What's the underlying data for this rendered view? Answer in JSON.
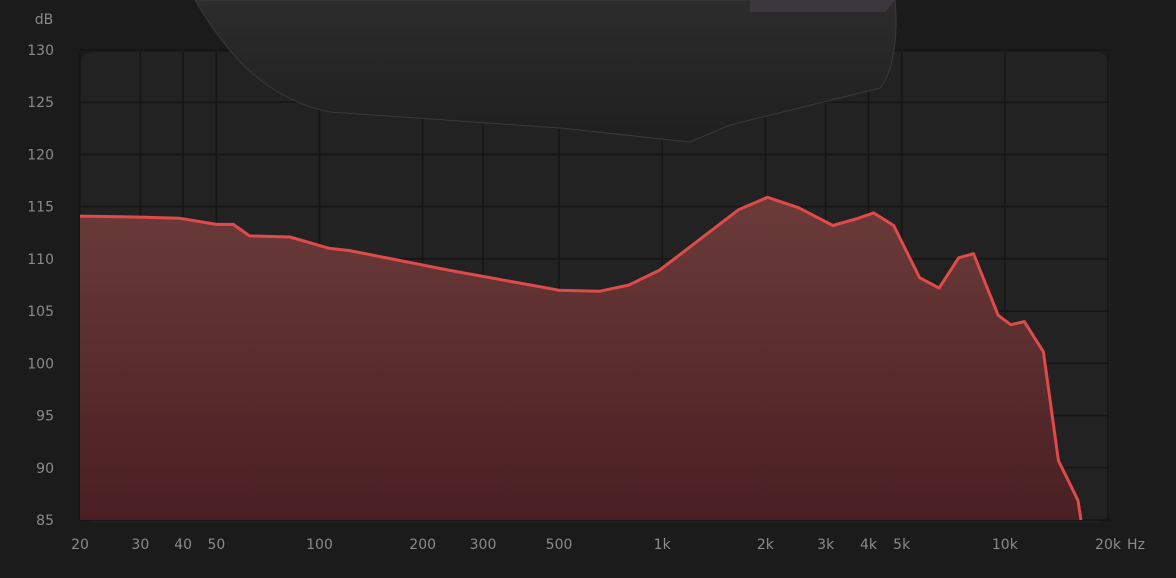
{
  "chart_data": {
    "type": "area",
    "title": "",
    "xlabel": "Hz",
    "ylabel": "dB",
    "x_scale": "log",
    "xlim": [
      20,
      20000
    ],
    "ylim": [
      85,
      130
    ],
    "grid": true,
    "x_ticks": [
      {
        "value": 20,
        "label": "20"
      },
      {
        "value": 30,
        "label": "30"
      },
      {
        "value": 40,
        "label": "40"
      },
      {
        "value": 50,
        "label": "50"
      },
      {
        "value": 100,
        "label": "100"
      },
      {
        "value": 200,
        "label": "200"
      },
      {
        "value": 300,
        "label": "300"
      },
      {
        "value": 500,
        "label": "500"
      },
      {
        "value": 1000,
        "label": "1k"
      },
      {
        "value": 2000,
        "label": "2k"
      },
      {
        "value": 3000,
        "label": "3k"
      },
      {
        "value": 4000,
        "label": "4k"
      },
      {
        "value": 5000,
        "label": "5k"
      },
      {
        "value": 10000,
        "label": "10k"
      },
      {
        "value": 20000,
        "label": "20k"
      }
    ],
    "y_ticks": [
      130,
      125,
      120,
      115,
      110,
      105,
      100,
      95,
      90,
      85
    ],
    "colors": {
      "line": "#e04a4a",
      "fill_top": "#6a3b39",
      "fill_bottom": "#4a1f23",
      "plot_bg": "#222222",
      "background": "#1b1b1b"
    },
    "series": [
      {
        "x": [
          20,
          30,
          39,
          50,
          56,
          62.5,
          82,
          107,
          122,
          240,
          500,
          656,
          800,
          980,
          1280,
          1670,
          2030,
          2500,
          3150,
          3740,
          4140,
          4740,
          5640,
          6430,
          7330,
          8100,
          9560,
          10400,
          11400,
          12960,
          14330,
          16340,
          16680
        ],
        "y": [
          114.1,
          114.0,
          113.9,
          113.3,
          113.3,
          112.2,
          112.1,
          111.0,
          110.8,
          108.9,
          107.0,
          106.9,
          107.5,
          108.9,
          111.8,
          114.7,
          115.9,
          114.9,
          113.2,
          113.9,
          114.4,
          113.2,
          108.2,
          107.2,
          110.1,
          110.5,
          104.6,
          103.7,
          104.0,
          101.1,
          90.7,
          86.9,
          85.0
        ]
      }
    ]
  }
}
